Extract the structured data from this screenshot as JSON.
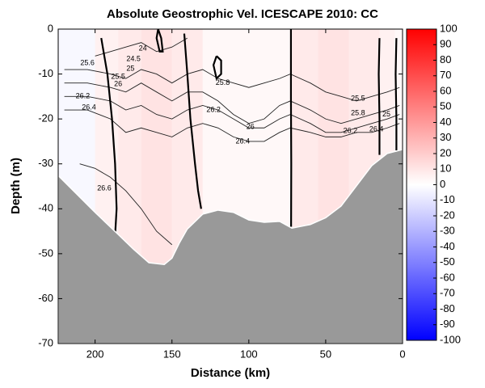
{
  "chart_data": {
    "type": "contour",
    "title": "Absolute Geostrophic Vel. ICESCAPE 2010: CC",
    "xlabel": "Distance (km)",
    "ylabel": "Depth (m)",
    "xlim": [
      224,
      0
    ],
    "xticks": [
      200,
      150,
      100,
      50,
      0
    ],
    "ylim": [
      -70,
      0
    ],
    "yticks": [
      0,
      -10,
      -20,
      -30,
      -40,
      -50,
      -60,
      -70
    ],
    "field": {
      "bins": [
        0,
        5,
        15,
        35,
        55,
        72,
        85,
        100,
        115,
        130,
        150,
        170,
        185,
        200,
        224
      ],
      "values": [
        5,
        10,
        15,
        20,
        15,
        5,
        5,
        5,
        5,
        15,
        20,
        15,
        10,
        -5
      ]
    },
    "bathymetry": {
      "color": "#999999",
      "x": [
        224,
        200,
        185,
        175,
        165,
        155,
        150,
        145,
        140,
        130,
        120,
        110,
        100,
        90,
        80,
        72,
        60,
        50,
        40,
        30,
        20,
        10,
        0
      ],
      "y": [
        -32.6,
        -40.8,
        -45.7,
        -49,
        -52,
        -52.4,
        -51,
        -47.5,
        -44.5,
        -41.2,
        -40.3,
        -40.8,
        -42.5,
        -43,
        -42.8,
        -44.3,
        -43.5,
        -42,
        -39.4,
        -34.9,
        -30.4,
        -27.7,
        -26.8
      ]
    },
    "contour_lines": [
      {
        "x": [
          220,
          205,
          190,
          180,
          170,
          160,
          150,
          140,
          130,
          120,
          110,
          100,
          90,
          80,
          73,
          60,
          50,
          40,
          30,
          20,
          10,
          2
        ],
        "y": [
          -9,
          -9,
          -10,
          -11,
          -9,
          -10,
          -12,
          -10,
          -9,
          -11,
          -12,
          -13,
          -12,
          -11,
          -10,
          -12,
          -14,
          -15,
          -16,
          -15,
          -14,
          -13
        ]
      },
      {
        "x": [
          220,
          205,
          190,
          180,
          170,
          160,
          150,
          140,
          130,
          120,
          110,
          100,
          90,
          80,
          73,
          60,
          50,
          40,
          30,
          20,
          10,
          2
        ],
        "y": [
          -12,
          -12,
          -13,
          -14,
          -12,
          -14,
          -16,
          -14,
          -14,
          -16,
          -19,
          -21,
          -20,
          -17,
          -16,
          -18,
          -20,
          -21,
          -20,
          -19,
          -18,
          -17
        ]
      },
      {
        "x": [
          220,
          205,
          190,
          180,
          170,
          160,
          150,
          140,
          130,
          120,
          110,
          100,
          90,
          80,
          73,
          60,
          50,
          40,
          30,
          20,
          10,
          2
        ],
        "y": [
          -15,
          -15,
          -16,
          -18,
          -17,
          -19,
          -20,
          -18,
          -17,
          -18,
          -20,
          -22,
          -22,
          -20,
          -19,
          -21,
          -23,
          -23,
          -22,
          -21,
          -20,
          -19
        ]
      },
      {
        "x": [
          220,
          205,
          190,
          180,
          170,
          160,
          150,
          140,
          130,
          120,
          110,
          100,
          90,
          80,
          73,
          60,
          50,
          40,
          30,
          20,
          10,
          2
        ],
        "y": [
          -18,
          -18,
          -20,
          -23,
          -22,
          -23,
          -24,
          -22,
          -21,
          -22,
          -24,
          -25,
          -25,
          -23,
          -22,
          -23,
          -24,
          -24,
          -23,
          -23,
          -22,
          -21
        ]
      },
      {
        "x": [
          200,
          190,
          180,
          170,
          160,
          150,
          140
        ],
        "y": [
          -6,
          -5,
          -4,
          -3,
          -5,
          -4,
          -2
        ]
      },
      {
        "x": [
          210,
          200,
          190,
          180,
          170,
          160,
          150
        ],
        "y": [
          -30,
          -31,
          -33,
          -36,
          -40,
          -45,
          -48
        ]
      }
    ],
    "contour_labels": [
      {
        "value": 25.6,
        "x": 205,
        "y": -7.6
      },
      {
        "value": 24,
        "x": 169,
        "y": -4.3
      },
      {
        "value": 24.5,
        "x": 175,
        "y": -6.7
      },
      {
        "value": 25,
        "x": 177,
        "y": -8.8
      },
      {
        "value": 25.5,
        "x": 185,
        "y": -10.6
      },
      {
        "value": 26,
        "x": 185,
        "y": -12.3
      },
      {
        "value": 26.2,
        "x": 208,
        "y": -15
      },
      {
        "value": 26.4,
        "x": 204,
        "y": -17.5
      },
      {
        "value": 25.8,
        "x": 117,
        "y": -12
      },
      {
        "value": 26.2,
        "x": 123,
        "y": -18
      },
      {
        "value": 26,
        "x": 99,
        "y": -21.8
      },
      {
        "value": 26.4,
        "x": 104,
        "y": -25
      },
      {
        "value": 26.6,
        "x": 194,
        "y": -35.5
      },
      {
        "value": 25.5,
        "x": 29,
        "y": -15.5
      },
      {
        "value": 25.8,
        "x": 29,
        "y": -18.7
      },
      {
        "value": 25,
        "x": 10.5,
        "y": -19
      },
      {
        "value": 26.2,
        "x": 34,
        "y": -22.7
      },
      {
        "value": 26.4,
        "x": 17,
        "y": -22.3
      }
    ],
    "zero_contours": [
      {
        "x": [
          196,
          192,
          189,
          187,
          186,
          187
        ],
        "y": [
          -2,
          -10,
          -20,
          -30,
          -40,
          -46
        ]
      },
      {
        "x": [
          142,
          140,
          138,
          135,
          133,
          131
        ],
        "y": [
          -1,
          -10,
          -20,
          -30,
          -36,
          -40
        ]
      },
      {
        "x": [
          72.6,
          72.6,
          72.4,
          72.5
        ],
        "y": [
          0,
          -15,
          -30,
          -44
        ]
      },
      {
        "x": [
          15,
          15.5,
          15,
          15
        ],
        "y": [
          -2,
          -10,
          -20,
          -28
        ]
      },
      {
        "x": [
          4,
          4.5,
          4,
          4
        ],
        "y": [
          -2,
          -10,
          -20,
          -27
        ]
      },
      {
        "x": [
          121,
          118,
          118,
          121,
          123,
          121
        ],
        "y": [
          -6,
          -7,
          -10,
          -11,
          -8,
          -6
        ]
      },
      {
        "x": [
          159,
          157,
          156,
          158,
          160,
          159
        ],
        "y": [
          0,
          -2,
          -5,
          -5,
          -2,
          0
        ]
      }
    ],
    "colorbar": {
      "lim": [
        -100,
        100
      ],
      "ticks": [
        100,
        90,
        80,
        70,
        60,
        50,
        40,
        30,
        20,
        10,
        0,
        -10,
        -20,
        -30,
        -40,
        -50,
        -60,
        -70,
        -80,
        -90,
        -100
      ],
      "low_color": "#0000ff",
      "mid_color": "#ffffff",
      "high_color": "#ff0000"
    }
  }
}
